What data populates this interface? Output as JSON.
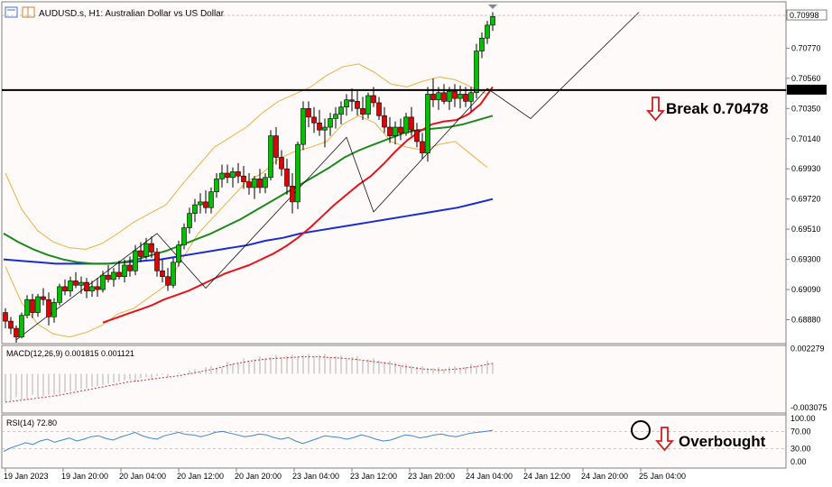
{
  "header": {
    "symbol": "AUDUSD.s",
    "timeframe": "H1",
    "description": "Australian Dollar vs US Dollar",
    "title": "AUDUSD.s, H1:  Australian Dollar vs US Dollar"
  },
  "colors": {
    "background": "#ffffff",
    "chart_bg": "#fffafa",
    "bull_candle": "#00c000",
    "bear_candle": "#e00000",
    "ema_fast": "#e8121b",
    "ema_mid": "#1c8a1c",
    "ema_slow": "#1a2bd6",
    "bollinger": "#f0b040",
    "annotation_arrow": "#d81a1a",
    "rsi_line": "#3a86d8",
    "macd_hist": "#b0b0b0",
    "macd_signal": "#d03030"
  },
  "chart_data": [
    {
      "type": "candlestick",
      "panel": "price",
      "ylim": [
        0.6872,
        0.7108
      ],
      "y_ticks": [
        "0.70998",
        "0.70770",
        "0.70560",
        "0.70478",
        "0.70350",
        "0.70140",
        "0.69930",
        "0.69720",
        "0.69510",
        "0.69300",
        "0.69090",
        "0.68880"
      ],
      "x_ticks": [
        "19 Jan 2023",
        "19 Jan 20:00",
        "20 Jan 04:00",
        "20 Jan 12:00",
        "20 Jan 20:00",
        "23 Jan 04:00",
        "23 Jan 12:00",
        "23 Jan 20:00",
        "24 Jan 04:00",
        "24 Jan 12:00",
        "24 Jan 20:00",
        "25 Jan 04:00"
      ],
      "last_price": "0.70998",
      "horizontal_level": {
        "value": 0.70478,
        "label": "0.70478"
      },
      "ohlc": [
        [
          0.6893,
          0.6896,
          0.6882,
          0.6887
        ],
        [
          0.6887,
          0.689,
          0.6878,
          0.6882
        ],
        [
          0.6882,
          0.6884,
          0.6872,
          0.6876
        ],
        [
          0.6876,
          0.6893,
          0.6875,
          0.6891
        ],
        [
          0.6891,
          0.6905,
          0.6889,
          0.6902
        ],
        [
          0.6902,
          0.6906,
          0.6889,
          0.6893
        ],
        [
          0.6893,
          0.6906,
          0.689,
          0.6904
        ],
        [
          0.6904,
          0.691,
          0.6898,
          0.6902
        ],
        [
          0.6902,
          0.6907,
          0.6884,
          0.689
        ],
        [
          0.689,
          0.6903,
          0.6886,
          0.69
        ],
        [
          0.69,
          0.6913,
          0.6898,
          0.6911
        ],
        [
          0.6911,
          0.6916,
          0.6905,
          0.6908
        ],
        [
          0.6908,
          0.6918,
          0.6904,
          0.6915
        ],
        [
          0.6915,
          0.6921,
          0.691,
          0.6912
        ],
        [
          0.6912,
          0.6918,
          0.6906,
          0.6914
        ],
        [
          0.6914,
          0.6917,
          0.6903,
          0.6908
        ],
        [
          0.6908,
          0.6915,
          0.6904,
          0.6911
        ],
        [
          0.6911,
          0.6917,
          0.6904,
          0.6909
        ],
        [
          0.6909,
          0.6922,
          0.6907,
          0.6919
        ],
        [
          0.6919,
          0.6926,
          0.6914,
          0.6916
        ],
        [
          0.6916,
          0.6924,
          0.6911,
          0.6921
        ],
        [
          0.6921,
          0.6929,
          0.6916,
          0.6918
        ],
        [
          0.6918,
          0.693,
          0.6914,
          0.6926
        ],
        [
          0.6926,
          0.6932,
          0.6918,
          0.6922
        ],
        [
          0.6922,
          0.694,
          0.6919,
          0.6936
        ],
        [
          0.6936,
          0.6942,
          0.6928,
          0.6932
        ],
        [
          0.6932,
          0.6945,
          0.693,
          0.6941
        ],
        [
          0.6941,
          0.6946,
          0.6931,
          0.6935
        ],
        [
          0.6935,
          0.6938,
          0.6918,
          0.6922
        ],
        [
          0.6922,
          0.693,
          0.6914,
          0.6918
        ],
        [
          0.6918,
          0.6924,
          0.6908,
          0.6912
        ],
        [
          0.6912,
          0.6931,
          0.691,
          0.6928
        ],
        [
          0.6928,
          0.6943,
          0.6925,
          0.694
        ],
        [
          0.694,
          0.6955,
          0.6937,
          0.6952
        ],
        [
          0.6952,
          0.6966,
          0.6948,
          0.6962
        ],
        [
          0.6962,
          0.6972,
          0.6956,
          0.6968
        ],
        [
          0.6968,
          0.6976,
          0.6962,
          0.697
        ],
        [
          0.697,
          0.6978,
          0.6962,
          0.6966
        ],
        [
          0.6966,
          0.698,
          0.6962,
          0.6977
        ],
        [
          0.6977,
          0.699,
          0.6973,
          0.6986
        ],
        [
          0.6986,
          0.6996,
          0.698,
          0.699
        ],
        [
          0.699,
          0.6996,
          0.6983,
          0.6987
        ],
        [
          0.6987,
          0.6994,
          0.698,
          0.6991
        ],
        [
          0.6991,
          0.6997,
          0.6983,
          0.6988
        ],
        [
          0.6988,
          0.6995,
          0.6979,
          0.6984
        ],
        [
          0.6984,
          0.699,
          0.6975,
          0.698
        ],
        [
          0.698,
          0.6988,
          0.6972,
          0.6986
        ],
        [
          0.6986,
          0.6993,
          0.6976,
          0.698
        ],
        [
          0.698,
          0.699,
          0.6976,
          0.6987
        ],
        [
          0.6987,
          0.702,
          0.6985,
          0.7016
        ],
        [
          0.7016,
          0.7022,
          0.6996,
          0.7001
        ],
        [
          0.7001,
          0.7006,
          0.6988,
          0.6993
        ],
        [
          0.6993,
          0.7,
          0.6975,
          0.6981
        ],
        [
          0.6981,
          0.699,
          0.6962,
          0.697
        ],
        [
          0.697,
          0.7012,
          0.6965,
          0.701
        ],
        [
          0.701,
          0.704,
          0.7006,
          0.7035
        ],
        [
          0.7035,
          0.704,
          0.7022,
          0.7029
        ],
        [
          0.7029,
          0.7036,
          0.7018,
          0.7025
        ],
        [
          0.7025,
          0.7034,
          0.7016,
          0.702
        ],
        [
          0.702,
          0.7028,
          0.7008,
          0.7022
        ],
        [
          0.7022,
          0.7032,
          0.7016,
          0.7028
        ],
        [
          0.7028,
          0.7036,
          0.7021,
          0.7031
        ],
        [
          0.7031,
          0.704,
          0.7024,
          0.7036
        ],
        [
          0.7036,
          0.7045,
          0.703,
          0.7041
        ],
        [
          0.7041,
          0.7049,
          0.7033,
          0.704
        ],
        [
          0.704,
          0.7047,
          0.703,
          0.7035
        ],
        [
          0.7035,
          0.7043,
          0.7027,
          0.7031
        ],
        [
          0.7031,
          0.7046,
          0.7028,
          0.7044
        ],
        [
          0.7044,
          0.705,
          0.7036,
          0.7039
        ],
        [
          0.7039,
          0.7043,
          0.7027,
          0.703
        ],
        [
          0.703,
          0.7036,
          0.7018,
          0.7022
        ],
        [
          0.7022,
          0.7029,
          0.7011,
          0.7016
        ],
        [
          0.7016,
          0.7026,
          0.701,
          0.7022
        ],
        [
          0.7022,
          0.7028,
          0.7013,
          0.7018
        ],
        [
          0.7018,
          0.7032,
          0.7016,
          0.7029
        ],
        [
          0.7029,
          0.7036,
          0.7016,
          0.702
        ],
        [
          0.702,
          0.7025,
          0.7008,
          0.7012
        ],
        [
          0.7012,
          0.7018,
          0.7,
          0.7004
        ],
        [
          0.7004,
          0.705,
          0.6998,
          0.7045
        ],
        [
          0.7045,
          0.7056,
          0.7036,
          0.7041
        ],
        [
          0.7041,
          0.705,
          0.7034,
          0.7046
        ],
        [
          0.7046,
          0.7052,
          0.7038,
          0.704
        ],
        [
          0.704,
          0.705,
          0.7034,
          0.7047
        ],
        [
          0.7047,
          0.7052,
          0.7036,
          0.7042
        ],
        [
          0.7042,
          0.7051,
          0.7035,
          0.7045
        ],
        [
          0.7045,
          0.705,
          0.7036,
          0.704
        ],
        [
          0.704,
          0.705,
          0.7033,
          0.7046
        ],
        [
          0.7046,
          0.708,
          0.7042,
          0.7075
        ],
        [
          0.7075,
          0.7088,
          0.707,
          0.7084
        ],
        [
          0.7084,
          0.7096,
          0.708,
          0.7093
        ],
        [
          0.7093,
          0.7102,
          0.7089,
          0.7099
        ]
      ],
      "ema_fast": [
        0.6886,
        0.6889,
        0.6892,
        0.6895,
        0.6898,
        0.6902,
        0.6905,
        0.6908,
        0.6912,
        0.6916,
        0.692,
        0.6923,
        0.6926,
        0.693,
        0.6934,
        0.6939,
        0.6945,
        0.6952,
        0.696,
        0.6968,
        0.6975,
        0.6982,
        0.6988,
        0.6996,
        0.7005,
        0.7013,
        0.7019,
        0.7024,
        0.7026,
        0.7027,
        0.7031,
        0.7038,
        0.705
      ],
      "ema_mid": [
        0.6948,
        0.6942,
        0.6937,
        0.6933,
        0.693,
        0.6928,
        0.6927,
        0.6927,
        0.6928,
        0.693,
        0.6933,
        0.6936,
        0.694,
        0.6944,
        0.6948,
        0.6953,
        0.6958,
        0.6964,
        0.697,
        0.6976,
        0.6982,
        0.6988,
        0.6994,
        0.7001,
        0.7006,
        0.701,
        0.7014,
        0.7018,
        0.702,
        0.7021,
        0.7022,
        0.7024,
        0.7027,
        0.703
      ],
      "ema_slow": [
        0.693,
        0.6929,
        0.6928,
        0.6927,
        0.6927,
        0.6927,
        0.6927,
        0.6928,
        0.6929,
        0.693,
        0.6932,
        0.6934,
        0.6936,
        0.6938,
        0.694,
        0.6943,
        0.6945,
        0.6948,
        0.695,
        0.6952,
        0.6954,
        0.6956,
        0.6958,
        0.696,
        0.6962,
        0.6964,
        0.6966,
        0.6969,
        0.6972
      ],
      "boll_upper": [
        0.699,
        0.6965,
        0.695,
        0.6942,
        0.6938,
        0.6937,
        0.6941,
        0.6948,
        0.6956,
        0.6962,
        0.6968,
        0.6982,
        0.6995,
        0.7008,
        0.7015,
        0.7022,
        0.7032,
        0.704,
        0.7045,
        0.705,
        0.7058,
        0.7064,
        0.7066,
        0.706,
        0.7052,
        0.705,
        0.7054,
        0.7057,
        0.7055,
        0.705,
        0.7045
      ],
      "boll_lower": [
        0.6925,
        0.69,
        0.6885,
        0.6878,
        0.6876,
        0.6879,
        0.6884,
        0.6892,
        0.6896,
        0.6904,
        0.6912,
        0.693,
        0.6948,
        0.696,
        0.6972,
        0.6984,
        0.699,
        0.7,
        0.7005,
        0.7008,
        0.7012,
        0.7024,
        0.703,
        0.7025,
        0.7012,
        0.7008,
        0.7006,
        0.701,
        0.7012,
        0.7003,
        0.6994
      ],
      "zigzag": [
        [
          2,
          0.6874
        ],
        [
          28,
          0.6948
        ],
        [
          37,
          0.691
        ],
        [
          63,
          0.7015
        ],
        [
          68,
          0.6963
        ],
        [
          89,
          0.7049
        ],
        [
          97,
          0.7028
        ],
        [
          117,
          0.7102
        ]
      ]
    },
    {
      "type": "bar",
      "panel": "macd",
      "title": "MACD(12,26,9) 0.001815 0.001121",
      "y_ticks": [
        "0.002279",
        "-0.003075"
      ],
      "ylim": [
        -0.0033,
        0.0024
      ],
      "signal": [
        -0.0024,
        -0.0022,
        -0.002,
        -0.0018,
        -0.0015,
        -0.0012,
        -0.0009,
        -0.0006,
        -0.0004,
        -0.0002,
        0.0,
        0.0003,
        0.0006,
        0.001,
        0.0013,
        0.0015,
        0.0016,
        0.0017,
        0.0017,
        0.0016,
        0.0015,
        0.0013,
        0.0011,
        0.0008,
        0.0006,
        0.0005,
        0.0006,
        0.0008,
        0.0011
      ]
    },
    {
      "type": "line",
      "panel": "rsi",
      "title": "RSI(14) 72.80",
      "y_ticks": [
        "100.00",
        "70.00",
        "30.00",
        "0.00"
      ],
      "ylim": [
        0,
        100
      ],
      "values": [
        24,
        32,
        38,
        44,
        40,
        48,
        52,
        45,
        50,
        55,
        48,
        52,
        58,
        60,
        54,
        50,
        57,
        62,
        68,
        60,
        55,
        52,
        60,
        64,
        68,
        63,
        62,
        58,
        62,
        68,
        70,
        66,
        62,
        58,
        60,
        64,
        62,
        56,
        52,
        56,
        48,
        42,
        48,
        54,
        60,
        58,
        56,
        52,
        56,
        62,
        58,
        52,
        48,
        50,
        56,
        62,
        60,
        55,
        58,
        62,
        64,
        60,
        58,
        62,
        66,
        68,
        70,
        72.8
      ]
    }
  ],
  "annotations": {
    "break_text": "Break 0.70478",
    "overbought_text": "Overbought"
  }
}
